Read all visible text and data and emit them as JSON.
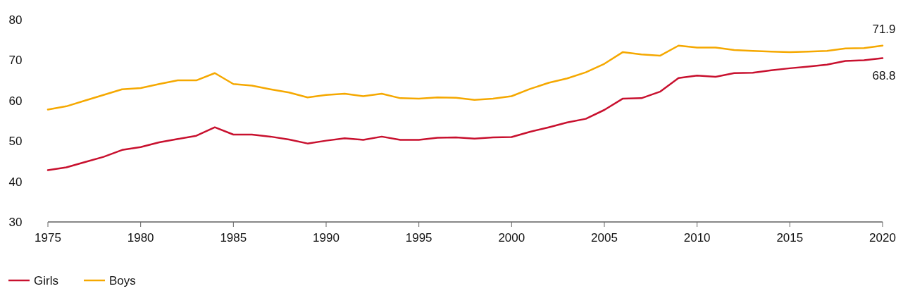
{
  "chart_data": {
    "type": "line",
    "x": [
      1975,
      1976,
      1977,
      1978,
      1979,
      1980,
      1981,
      1982,
      1983,
      1984,
      1985,
      1986,
      1987,
      1988,
      1989,
      1990,
      1991,
      1992,
      1993,
      1994,
      1995,
      1996,
      1997,
      1998,
      1999,
      2000,
      2001,
      2002,
      2003,
      2004,
      2005,
      2006,
      2007,
      2008,
      2009,
      2010,
      2011,
      2012,
      2013,
      2014,
      2015,
      2016,
      2017,
      2018,
      2019,
      2020
    ],
    "series": [
      {
        "name": "Girls",
        "color": "#c8102e",
        "values": [
          42.8,
          43.5,
          44.8,
          46.1,
          47.8,
          48.5,
          49.7,
          50.5,
          51.3,
          53.4,
          51.6,
          51.6,
          51.1,
          50.4,
          49.4,
          50.1,
          50.7,
          50.3,
          51.1,
          50.3,
          50.3,
          50.8,
          50.9,
          50.6,
          50.9,
          51.0,
          52.3,
          53.4,
          54.6,
          55.5,
          57.7,
          60.5,
          60.6,
          62.2,
          65.6,
          66.2,
          65.9,
          66.8,
          66.9,
          67.5,
          68.0,
          68.4,
          68.9,
          69.8,
          70.0,
          70.5
        ]
      },
      {
        "name": "Boys",
        "color": "#f5a800",
        "values": [
          57.8,
          58.6,
          60.0,
          61.4,
          62.8,
          63.1,
          64.1,
          65.0,
          65.0,
          66.8,
          64.1,
          63.7,
          62.8,
          62.0,
          60.8,
          61.4,
          61.7,
          61.1,
          61.7,
          60.6,
          60.5,
          60.8,
          60.7,
          60.2,
          60.5,
          61.1,
          62.9,
          64.4,
          65.5,
          67.0,
          69.1,
          72.0,
          71.4,
          71.1,
          73.6,
          73.1,
          73.1,
          72.5,
          72.3,
          72.1,
          72.0,
          72.1,
          72.3,
          72.9,
          73.0,
          73.6
        ]
      }
    ],
    "xlim": [
      1975,
      2020
    ],
    "xticks": [
      1975,
      1980,
      1985,
      1990,
      1995,
      2000,
      2005,
      2010,
      2015,
      2020
    ],
    "ylim": [
      30,
      80
    ],
    "yticks": [
      30,
      40,
      50,
      60,
      70,
      80
    ],
    "annotations": [
      "71.9",
      "68.8"
    ],
    "grid": false,
    "legend": "bottom left",
    "marker": "none",
    "line_style": "solid"
  }
}
